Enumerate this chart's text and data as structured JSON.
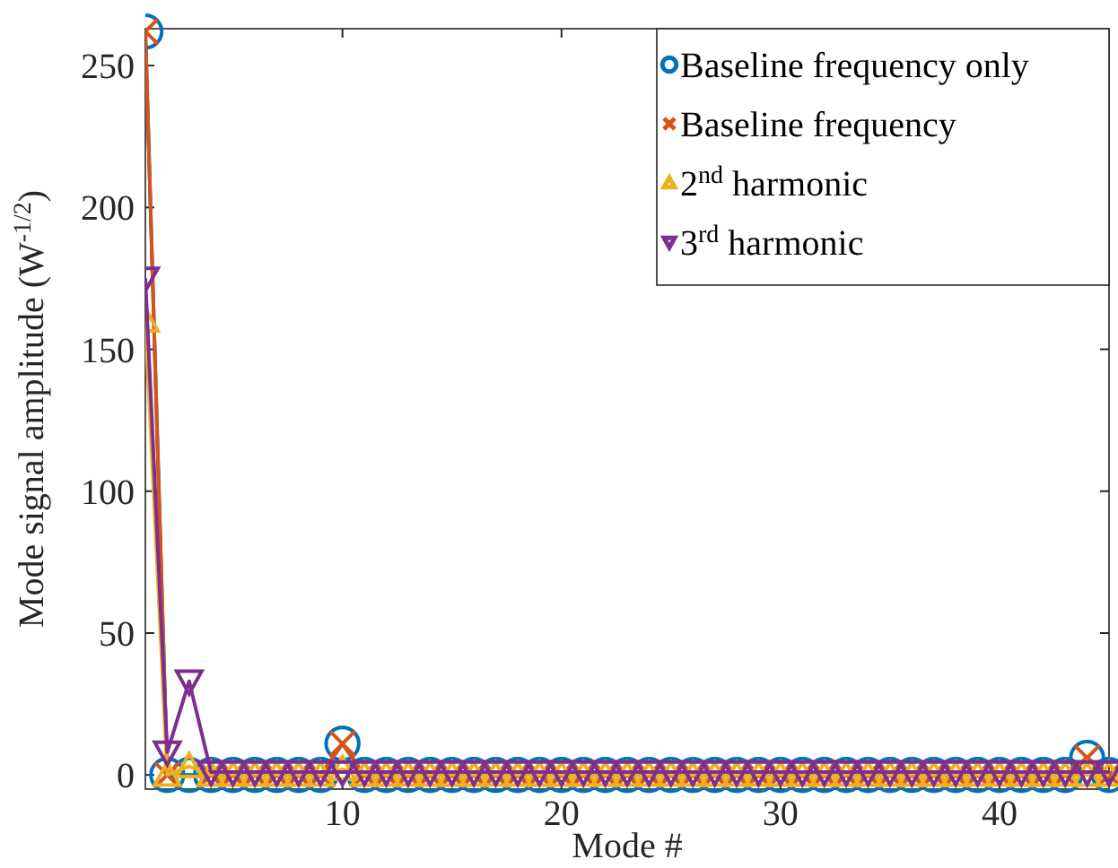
{
  "chart_data": {
    "type": "line",
    "xlabel": "Mode #",
    "ylabel": "Mode signal amplitude (W$^{-1/2}$)",
    "x": [
      1,
      2,
      3,
      4,
      5,
      6,
      7,
      8,
      9,
      10,
      11,
      12,
      13,
      14,
      15,
      16,
      17,
      18,
      19,
      20,
      21,
      22,
      23,
      24,
      25,
      26,
      27,
      28,
      29,
      30,
      31,
      32,
      33,
      34,
      35,
      36,
      37,
      38,
      39,
      40,
      41,
      42,
      43,
      44,
      45
    ],
    "xlim": [
      1,
      45
    ],
    "xticks": [
      10,
      20,
      30,
      40
    ],
    "ylim": [
      -5,
      263
    ],
    "yticks": [
      0,
      50,
      100,
      150,
      200,
      250
    ],
    "grid": false,
    "legend": "top right",
    "series": [
      {
        "name": "Baseline frequency only",
        "color": "#0072bd",
        "marker": "circle",
        "values": [
          262,
          0,
          0,
          0,
          0,
          0,
          0,
          0,
          0,
          11,
          0,
          0,
          0,
          0,
          0,
          0,
          0,
          0,
          0,
          0,
          0,
          0,
          0,
          0,
          0,
          0,
          0,
          0,
          0,
          0,
          0,
          0,
          0,
          0,
          0,
          0,
          0,
          0,
          0,
          0,
          0,
          0,
          0,
          6,
          0
        ]
      },
      {
        "name": "Baseline frequency",
        "color": "#d95319",
        "marker": "cross",
        "values": [
          262,
          0,
          null,
          0,
          0,
          0,
          0,
          0,
          0,
          11,
          0,
          0,
          0,
          0,
          0,
          0,
          0,
          0,
          0,
          0,
          0,
          0,
          0,
          0,
          0,
          0,
          0,
          0,
          0,
          0,
          0,
          0,
          0,
          0,
          0,
          0,
          0,
          0,
          0,
          0,
          0,
          0,
          0,
          6,
          0
        ]
      },
      {
        "name": "2$^{nd}$ harmonic",
        "color": "#edb120",
        "marker": "triangle",
        "values": [
          160,
          0,
          3,
          0,
          0,
          0,
          0,
          0,
          0,
          2,
          0,
          0,
          0,
          0,
          0,
          0,
          0,
          0,
          0,
          0,
          0,
          0,
          0,
          0,
          0,
          0,
          0,
          0,
          0,
          0,
          0,
          0,
          0,
          0,
          0,
          0,
          0,
          0,
          0,
          0,
          0,
          0,
          0,
          0,
          0
        ]
      },
      {
        "name": "3$^{rd}$ harmonic",
        "color": "#7e2f8e",
        "marker": "triangle-down",
        "values": [
          175,
          8,
          33,
          1,
          1,
          1,
          1,
          1,
          1,
          1,
          1,
          1,
          1,
          1,
          1,
          1,
          1,
          1,
          1,
          1,
          1,
          1,
          1,
          1,
          1,
          1,
          1,
          1,
          1,
          1,
          1,
          1,
          1,
          1,
          1,
          1,
          1,
          1,
          1,
          1,
          1,
          1,
          1,
          1,
          1
        ]
      }
    ]
  }
}
